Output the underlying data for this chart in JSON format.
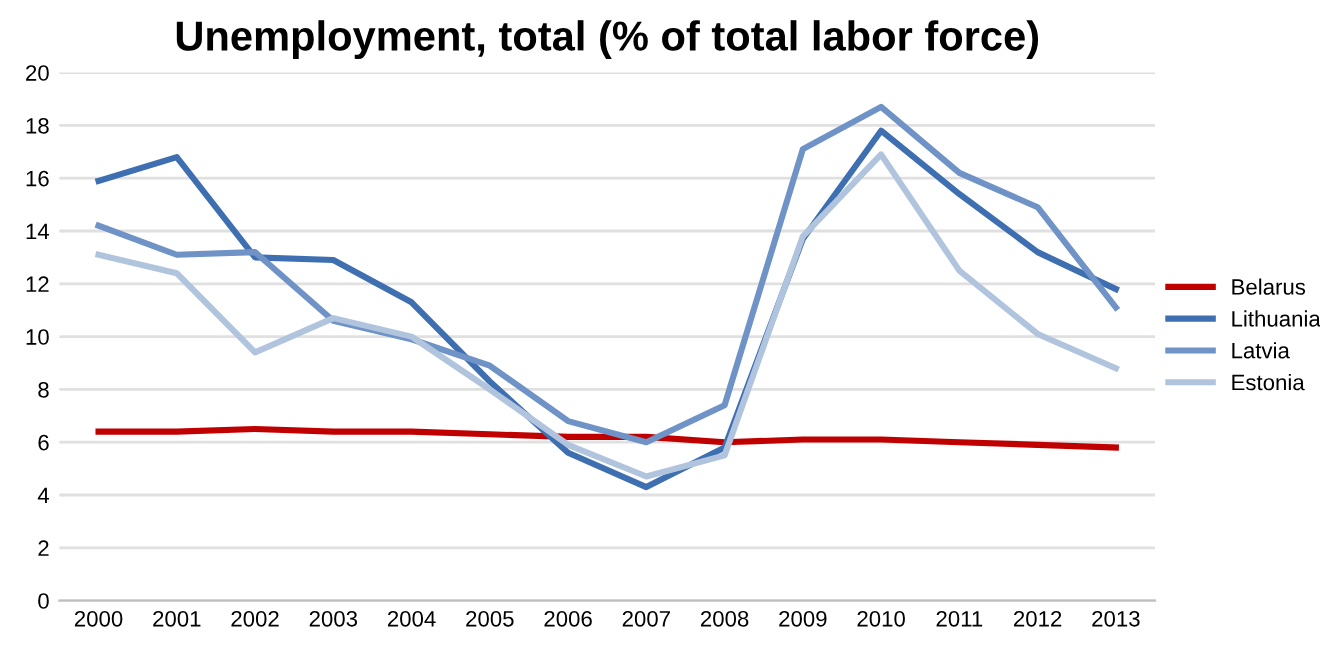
{
  "chart_data": {
    "type": "line",
    "title": "Unemployment, total (% of total labor force)",
    "categories": [
      "2000",
      "2001",
      "2002",
      "2003",
      "2004",
      "2005",
      "2006",
      "2007",
      "2008",
      "2009",
      "2010",
      "2011",
      "2012",
      "2013"
    ],
    "series": [
      {
        "name": "Belarus",
        "color": "#c00000",
        "values": [
          6.4,
          6.4,
          6.5,
          6.4,
          6.4,
          6.3,
          6.2,
          6.2,
          6.0,
          6.1,
          6.1,
          6.0,
          5.9,
          5.8
        ]
      },
      {
        "name": "Lithuania",
        "color": "#3e6fb0",
        "values": [
          15.9,
          16.8,
          13.0,
          12.9,
          11.3,
          8.3,
          5.6,
          4.3,
          5.8,
          13.7,
          17.8,
          15.4,
          13.2,
          11.8
        ]
      },
      {
        "name": "Latvia",
        "color": "#6f93c6",
        "values": [
          14.2,
          13.1,
          13.2,
          10.6,
          9.9,
          8.9,
          6.8,
          6.0,
          7.4,
          17.1,
          18.7,
          16.2,
          14.9,
          11.1
        ]
      },
      {
        "name": "Estonia",
        "color": "#b0c4de",
        "values": [
          13.1,
          12.4,
          9.4,
          10.7,
          10.0,
          8.0,
          5.9,
          4.7,
          5.5,
          13.8,
          16.9,
          12.5,
          10.1,
          8.8
        ]
      }
    ],
    "ylim": [
      0,
      20
    ],
    "yticks": [
      0,
      2,
      4,
      6,
      8,
      10,
      12,
      14,
      16,
      18,
      20
    ],
    "grid": "y",
    "legend": "right",
    "marker": "none",
    "line_style": "solid"
  }
}
